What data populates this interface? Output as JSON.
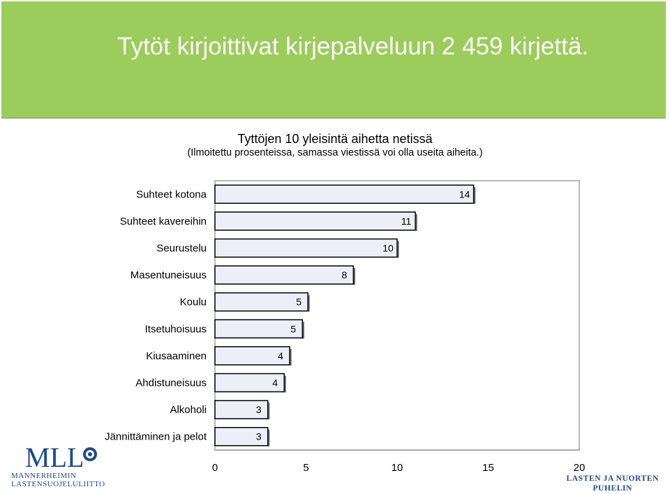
{
  "banner": {
    "title": "Tytöt kirjoittivat kirjepalveluun 2 459 kirjettä.",
    "color": "#9bcc5c"
  },
  "logos": {
    "mll_abbrev": "MLL",
    "mll_line1": "MANNERHEIMIN",
    "mll_line2": "LASTENSUOJELULIITTO",
    "phone_line1": "LASTEN JA NUORTEN",
    "phone_line2": "PUHELIN"
  },
  "chart_data": {
    "type": "bar",
    "orientation": "horizontal",
    "title": "Tyttöjen 10 yleisintä aihetta netissä",
    "subtitle": "(Ilmoitettu prosenteissa, samassa viestissä voi olla useita aiheita.)",
    "categories": [
      "Suhteet kotona",
      "Suhteet kavereihin",
      "Seurustelu",
      "Masentuneisuus",
      "Koulu",
      "Itsetuhoisuus",
      "Kiusaaminen",
      "Ahdistuneisuus",
      "Alkoholi",
      "Jännittäminen ja pelot"
    ],
    "values": [
      14.2,
      11.0,
      10.0,
      7.6,
      5.1,
      4.8,
      4.1,
      3.8,
      2.9,
      2.9
    ],
    "data_labels": [
      "14",
      "11",
      "10",
      "8",
      "5",
      "5",
      "4",
      "4",
      "3",
      "3"
    ],
    "xlim": [
      0,
      20
    ],
    "xticks": [
      "0",
      "5",
      "10",
      "15",
      "20"
    ],
    "bar_color": "#eeeef8",
    "bar_edge": "#000000",
    "grid": false
  }
}
